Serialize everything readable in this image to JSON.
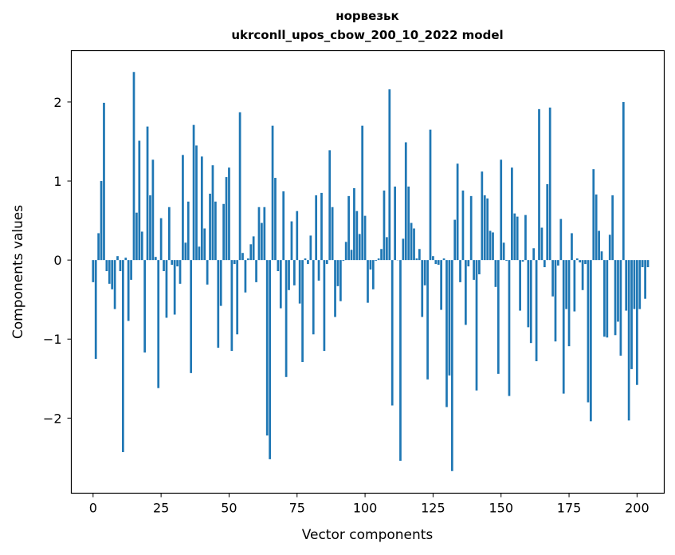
{
  "chart_data": {
    "type": "bar",
    "title_line1": "норвезьк",
    "title_line2": "ukrconll_upos_cbow_200_10_2022 model",
    "xlabel": "Vector components",
    "ylabel": "Components values",
    "xlim": [
      -8,
      210
    ],
    "ylim": [
      -2.95,
      2.65
    ],
    "xticks": [
      0,
      25,
      50,
      75,
      100,
      125,
      150,
      175,
      200
    ],
    "yticks": [
      -2,
      -1,
      0,
      1,
      2
    ],
    "ytick_labels": [
      "−2",
      "−1",
      "0",
      "1",
      "2"
    ],
    "bar_color": "#1f77b4",
    "grid": false,
    "values": [
      -0.28,
      -1.25,
      0.34,
      1.0,
      1.99,
      -0.14,
      -0.3,
      -0.37,
      -0.62,
      0.05,
      -0.14,
      -2.43,
      0.03,
      -0.77,
      -0.25,
      2.38,
      0.6,
      1.51,
      0.36,
      -1.17,
      1.69,
      0.82,
      1.27,
      0.04,
      -1.62,
      0.53,
      -0.14,
      -0.73,
      0.67,
      -0.06,
      -0.69,
      -0.08,
      -0.3,
      1.33,
      0.22,
      0.74,
      -1.43,
      1.71,
      1.45,
      0.17,
      1.31,
      0.4,
      -0.31,
      0.84,
      1.2,
      0.74,
      -1.11,
      -0.58,
      0.71,
      1.05,
      1.17,
      -1.15,
      -0.05,
      -0.94,
      1.87,
      0.09,
      -0.41,
      0.02,
      0.2,
      0.3,
      -0.28,
      0.67,
      0.47,
      0.67,
      -2.22,
      -2.52,
      1.7,
      1.04,
      -0.14,
      -0.61,
      0.87,
      -1.48,
      -0.38,
      0.49,
      -0.32,
      0.62,
      -0.55,
      -1.29,
      0.02,
      -0.05,
      0.31,
      -0.94,
      0.82,
      -0.26,
      0.85,
      -1.15,
      -0.05,
      1.39,
      0.67,
      -0.72,
      -0.33,
      -0.52,
      -0.01,
      0.23,
      0.81,
      0.13,
      0.91,
      0.62,
      0.33,
      1.7,
      0.56,
      -0.54,
      -0.12,
      -0.37,
      -0.01,
      0.02,
      0.14,
      0.88,
      0.29,
      2.16,
      -1.84,
      0.93,
      0.0,
      -2.54,
      0.27,
      1.49,
      0.93,
      0.47,
      0.4,
      0.02,
      0.14,
      -0.72,
      -0.32,
      -1.51,
      1.65,
      0.05,
      -0.05,
      -0.06,
      -0.63,
      0.02,
      -1.86,
      -1.46,
      -2.67,
      0.51,
      1.22,
      -0.28,
      0.88,
      -0.82,
      -0.08,
      0.81,
      -0.25,
      -1.65,
      -0.18,
      1.12,
      0.82,
      0.78,
      0.37,
      0.35,
      -0.34,
      -1.44,
      1.27,
      0.22,
      -0.01,
      -1.72,
      1.17,
      0.59,
      0.55,
      -0.64,
      -0.02,
      0.57,
      -0.85,
      -1.05,
      0.15,
      -1.28,
      1.91,
      0.41,
      -0.09,
      0.96,
      1.93,
      -0.46,
      -1.03,
      -0.07,
      0.52,
      -1.69,
      -0.62,
      -1.09,
      0.34,
      -0.65,
      0.02,
      -0.03,
      -0.38,
      -0.05,
      -1.8,
      -2.04,
      1.15,
      0.83,
      0.37,
      0.11,
      -0.97,
      -0.98,
      0.32,
      0.82,
      -0.95,
      -0.78,
      -1.21,
      2.0,
      -0.64,
      -2.03,
      -1.38,
      -0.62,
      -1.58,
      -0.62,
      -0.09,
      -0.49,
      -0.09
    ]
  }
}
